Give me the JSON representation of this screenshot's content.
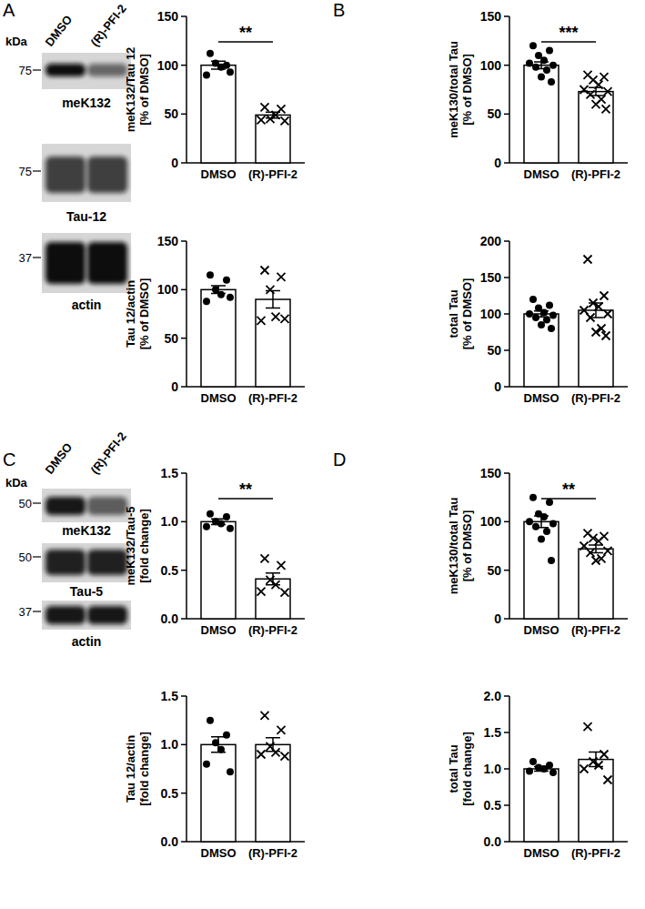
{
  "blots": [
    {
      "lanes": [
        "DMSO",
        "(R)-PFI-2"
      ],
      "unit": "kDa",
      "rows": [
        {
          "label": "meK132",
          "size": 75
        },
        {
          "label": "Tau-12",
          "size": 75
        },
        {
          "label": "actin",
          "size": 37
        }
      ]
    },
    {
      "lanes": [
        "DMSO",
        "(R)-PFI-2"
      ],
      "unit": "kDa",
      "rows": [
        {
          "label": "meK132",
          "size": 50
        },
        {
          "label": "Tau-5",
          "size": 50
        },
        {
          "label": "actin",
          "size": 37
        }
      ]
    }
  ],
  "chart_data": [
    {
      "type": "bar",
      "panel": "A",
      "ylabel": [
        "meK132/Tau 12",
        "[% of DMSO]"
      ],
      "categories": [
        "DMSO",
        "(R)-PFI-2"
      ],
      "values": [
        100,
        49
      ],
      "errors": [
        4,
        3
      ],
      "points": [
        [
          112,
          100,
          102,
          98,
          90,
          93
        ],
        [
          57,
          55,
          45,
          49,
          44,
          43
        ]
      ],
      "significance": "**",
      "ylim": [
        0,
        150
      ],
      "yticks": [
        0,
        50,
        100,
        150
      ]
    },
    {
      "type": "bar",
      "ylabel": [
        "Tau 12/actin",
        "[% of DMSO]"
      ],
      "categories": [
        "DMSO",
        "(R)-PFI-2"
      ],
      "values": [
        100,
        90
      ],
      "errors": [
        4,
        9
      ],
      "points": [
        [
          115,
          110,
          100,
          95,
          88,
          92
        ],
        [
          120,
          113,
          100,
          72,
          68,
          70
        ]
      ],
      "ylim": [
        0,
        150
      ],
      "yticks": [
        0,
        50,
        100,
        150
      ]
    },
    {
      "type": "bar",
      "panel": "B",
      "ylabel": [
        "meK130/total Tau",
        "[% of DMSO]"
      ],
      "categories": [
        "DMSO",
        "(R)-PFI-2"
      ],
      "values": [
        100,
        73
      ],
      "errors": [
        3.5,
        4
      ],
      "points": [
        [
          120,
          115,
          110,
          105,
          102,
          100,
          98,
          95,
          88,
          83
        ],
        [
          90,
          88,
          85,
          80,
          75,
          73,
          70,
          65,
          60,
          55
        ]
      ],
      "significance": "***",
      "ylim": [
        0,
        150
      ],
      "yticks": [
        0,
        50,
        100,
        150
      ]
    },
    {
      "type": "bar",
      "ylabel": [
        "total Tau",
        "[% of DMSO]"
      ],
      "categories": [
        "DMSO",
        "(R)-PFI-2"
      ],
      "values": [
        100,
        105
      ],
      "errors": [
        4,
        10
      ],
      "points": [
        [
          120,
          112,
          108,
          102,
          100,
          98,
          95,
          92,
          85,
          80
        ],
        [
          175,
          125,
          115,
          110,
          105,
          100,
          95,
          80,
          75,
          70
        ]
      ],
      "ylim": [
        0,
        200
      ],
      "yticks": [
        0,
        50,
        100,
        150,
        200
      ]
    },
    {
      "type": "bar",
      "panel": "C",
      "ylabel": [
        "meK132/Tau-5",
        "[fold change]"
      ],
      "categories": [
        "DMSO",
        "(R)-PFI-2"
      ],
      "values": [
        1.0,
        0.41
      ],
      "errors": [
        0.03,
        0.06
      ],
      "points": [
        [
          1.08,
          1.05,
          1.0,
          0.98,
          0.95,
          0.93
        ],
        [
          0.62,
          0.55,
          0.4,
          0.35,
          0.28,
          0.27
        ]
      ],
      "significance": "**",
      "ylim": [
        0,
        1.5
      ],
      "yticks": [
        {
          "value": 0,
          "label": "0.0"
        },
        0.5,
        {
          "value": 1,
          "label": "1.0"
        },
        1.5
      ]
    },
    {
      "type": "bar",
      "ylabel": [
        "Tau 12/actin",
        "[fold change]"
      ],
      "categories": [
        "DMSO",
        "(R)-PFI-2"
      ],
      "values": [
        1.0,
        1.0
      ],
      "errors": [
        0.08,
        0.07
      ],
      "points": [
        [
          1.25,
          1.1,
          1.02,
          0.95,
          0.8,
          0.72
        ],
        [
          1.3,
          1.15,
          0.98,
          0.92,
          0.9,
          0.88
        ]
      ],
      "ylim": [
        0,
        1.5
      ],
      "yticks": [
        {
          "value": 0,
          "label": "0.0"
        },
        0.5,
        {
          "value": 1,
          "label": "1.0"
        },
        1.5
      ]
    },
    {
      "type": "bar",
      "panel": "D",
      "ylabel": [
        "meK130/total Tau",
        "[% of DMSO]"
      ],
      "categories": [
        "DMSO",
        "(R)-PFI-2"
      ],
      "values": [
        100,
        72
      ],
      "errors": [
        6,
        4
      ],
      "points": [
        [
          125,
          120,
          108,
          105,
          100,
          98,
          95,
          90,
          82,
          60
        ],
        [
          88,
          85,
          83,
          80,
          75,
          70,
          68,
          62,
          60
        ]
      ],
      "significance": "**",
      "ylim": [
        0,
        150
      ],
      "yticks": [
        0,
        50,
        100,
        150
      ]
    },
    {
      "type": "bar",
      "ylabel": [
        "total Tau",
        "[fold change]"
      ],
      "categories": [
        "DMSO",
        "(R)-PFI-2"
      ],
      "values": [
        1.0,
        1.13
      ],
      "errors": [
        0.03,
        0.1
      ],
      "points": [
        [
          1.1,
          1.05,
          1.02,
          1.0,
          0.97,
          0.95
        ],
        [
          1.58,
          1.2,
          1.1,
          1.05,
          1.0,
          0.85
        ]
      ],
      "ylim": [
        0,
        2
      ],
      "yticks": [
        {
          "value": 0,
          "label": "0.0"
        },
        0.5,
        {
          "value": 1,
          "label": "1.0"
        },
        1.5,
        {
          "value": 2,
          "label": "2.0"
        }
      ]
    }
  ]
}
